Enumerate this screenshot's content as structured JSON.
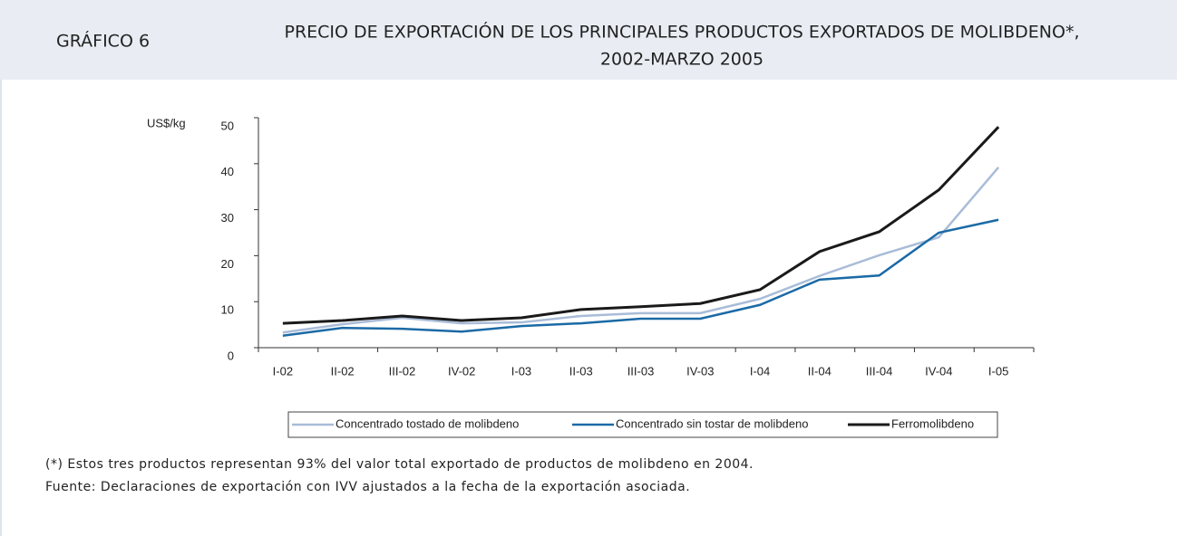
{
  "header": {
    "label": "GRÁFICO 6",
    "title": [
      "PRECIO DE EXPORTACIÓN DE LOS PRINCIPALES PRODUCTOS EXPORTADOS DE MOLIBDENO*,",
      "2002-MARZO 2005"
    ]
  },
  "chart_data": {
    "type": "line",
    "y_axis_label": "US$/kg",
    "categories": [
      "I-02",
      "II-02",
      "III-02",
      "IV-02",
      "I-03",
      "II-03",
      "III-03",
      "IV-03",
      "I-04",
      "II-04",
      "III-04",
      "IV-04",
      "I-05"
    ],
    "series": [
      {
        "name": "Concentrado tostado de molibdeno",
        "color": "#a9bcd8",
        "values": [
          3.3,
          5.1,
          6.5,
          5.3,
          5.5,
          6.9,
          7.5,
          7.5,
          10.6,
          15.6,
          20.1,
          24.0,
          39.2
        ]
      },
      {
        "name": "Concentrado sin tostar de molibdeno",
        "color": "#1b6aa5",
        "values": [
          2.6,
          4.3,
          4.1,
          3.5,
          4.7,
          5.3,
          6.3,
          6.3,
          9.3,
          14.8,
          15.7,
          25.0,
          27.8
        ]
      },
      {
        "name": "Ferromolibdeno",
        "color": "#1a1a1a",
        "values": [
          5.3,
          5.9,
          6.9,
          5.9,
          6.5,
          8.3,
          8.9,
          9.6,
          12.6,
          20.9,
          25.2,
          34.3,
          48.0
        ]
      }
    ],
    "ylim": [
      0,
      50
    ],
    "yticks": [
      0,
      10,
      20,
      30,
      40,
      50
    ],
    "legend": "bottom"
  },
  "notes": [
    "(*)   Estos tres productos representan 93% del valor total exportado de productos de molibdeno en 2004.",
    "Fuente: Declaraciones de exportación con IVV ajustados a la fecha de la exportación asociada."
  ]
}
